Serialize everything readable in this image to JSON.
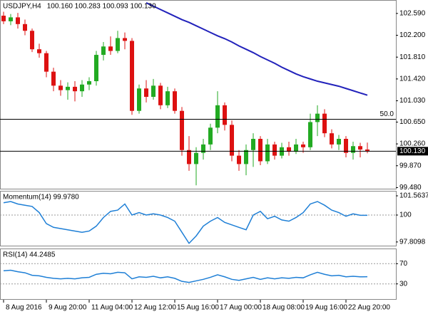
{
  "chart_data": [
    {
      "type": "candlestick",
      "title": "USDJPY,H4",
      "ohlc_label": "100.160 100.283 100.093 100.130",
      "categories": [
        "8 Aug 2016",
        null,
        null,
        null,
        null,
        null,
        "9 Aug 20:00",
        null,
        null,
        null,
        null,
        null,
        "11 Aug 04:00",
        null,
        null,
        null,
        null,
        null,
        "12 Aug 12:00",
        null,
        null,
        null,
        null,
        null,
        "15 Aug 16:00",
        null,
        null,
        null,
        null,
        null,
        "17 Aug 00:00",
        null,
        null,
        null,
        null,
        null,
        "18 Aug 08:00",
        null,
        null,
        null,
        null,
        null,
        "19 Aug 16:00",
        null,
        null,
        null,
        null,
        null,
        "22 Aug 20:00",
        null,
        null,
        null
      ],
      "open": [
        102.55,
        102.45,
        102.52,
        102.4,
        102.28,
        101.95,
        101.88,
        101.55,
        101.3,
        101.22,
        101.28,
        101.2,
        101.32,
        101.38,
        101.85,
        102.0,
        101.92,
        102.15,
        102.1,
        100.85,
        101.25,
        101.1,
        101.3,
        100.95,
        101.2,
        100.85,
        100.15,
        99.9,
        100.1,
        100.25,
        100.55,
        100.95,
        100.6,
        100.05,
        99.9,
        100.15,
        100.35,
        99.95,
        100.25,
        100.05,
        100.2,
        100.12,
        100.25,
        100.2,
        100.65,
        100.8,
        100.45,
        100.25,
        100.35,
        100.1,
        100.22,
        100.16
      ],
      "high": [
        102.62,
        102.58,
        102.6,
        102.48,
        102.32,
        102.05,
        101.92,
        101.62,
        101.4,
        101.36,
        101.38,
        101.4,
        101.45,
        101.92,
        102.08,
        102.18,
        102.28,
        102.25,
        102.15,
        101.32,
        101.4,
        101.42,
        101.35,
        101.28,
        101.25,
        100.92,
        100.4,
        100.2,
        100.35,
        100.62,
        101.2,
        101.0,
        100.68,
        100.15,
        100.25,
        100.45,
        100.4,
        100.35,
        100.3,
        100.28,
        100.3,
        100.35,
        100.3,
        100.8,
        100.95,
        100.88,
        100.52,
        100.42,
        100.4,
        100.3,
        100.28,
        100.283
      ],
      "low": [
        102.4,
        102.38,
        102.32,
        102.2,
        101.9,
        101.8,
        101.45,
        101.2,
        101.12,
        101.05,
        101.02,
        101.1,
        101.22,
        101.3,
        101.75,
        101.85,
        101.88,
        101.95,
        100.78,
        100.8,
        101.0,
        101.05,
        100.88,
        100.9,
        100.8,
        100.05,
        99.78,
        99.52,
        99.98,
        100.15,
        100.45,
        100.5,
        99.95,
        99.78,
        99.7,
        99.85,
        99.88,
        99.9,
        99.98,
        100.0,
        100.05,
        100.08,
        100.1,
        100.15,
        100.4,
        100.38,
        100.18,
        100.15,
        100.02,
        99.98,
        100.02,
        100.093
      ],
      "close": [
        102.45,
        102.52,
        102.4,
        102.28,
        101.95,
        101.88,
        101.55,
        101.3,
        101.22,
        101.28,
        101.2,
        101.32,
        101.38,
        101.85,
        102.0,
        101.92,
        102.15,
        102.1,
        100.85,
        101.25,
        101.1,
        101.3,
        100.95,
        101.2,
        100.85,
        100.15,
        99.9,
        100.1,
        100.25,
        100.55,
        100.95,
        100.6,
        100.05,
        99.9,
        100.15,
        100.35,
        99.95,
        100.25,
        100.05,
        100.2,
        100.12,
        100.25,
        100.2,
        100.65,
        100.8,
        100.45,
        100.25,
        100.35,
        100.1,
        100.22,
        100.16,
        100.13
      ],
      "up_color": "#22aa22",
      "down_color": "#dd1111",
      "overlay": {
        "color": "#2222bb",
        "values": [
          null,
          null,
          null,
          null,
          null,
          null,
          null,
          null,
          null,
          null,
          null,
          null,
          null,
          null,
          null,
          null,
          null,
          null,
          null,
          null,
          102.78,
          102.72,
          102.66,
          102.6,
          102.54,
          102.48,
          102.43,
          102.37,
          102.31,
          102.25,
          102.19,
          102.14,
          102.08,
          102.01,
          101.95,
          101.89,
          101.82,
          101.76,
          101.7,
          101.63,
          101.57,
          101.51,
          101.46,
          101.42,
          101.38,
          101.35,
          101.32,
          101.29,
          101.25,
          101.21,
          101.17,
          101.13
        ]
      },
      "fibo_level": {
        "value": 100.7,
        "label": "50.0"
      },
      "last_price": {
        "value": 100.13,
        "label": "100.130"
      },
      "ylim": [
        99.46,
        102.83
      ],
      "yticks": [
        {
          "value": 102.59,
          "label": "102.590"
        },
        {
          "value": 102.2,
          "label": "102.200"
        },
        {
          "value": 101.81,
          "label": "101.810"
        },
        {
          "value": 101.42,
          "label": "101.420"
        },
        {
          "value": 101.03,
          "label": "101.030"
        },
        {
          "value": 100.65,
          "label": "100.650"
        },
        {
          "value": 100.26,
          "label": "100.260"
        },
        {
          "value": 99.87,
          "label": "99.870"
        },
        {
          "value": 99.48,
          "label": "99.480"
        }
      ]
    },
    {
      "type": "line",
      "title": "Momentum(14) 99.9780",
      "color": "#1e7fd6",
      "values": [
        101.0,
        101.1,
        100.9,
        100.8,
        100.7,
        100.2,
        99.3,
        99.0,
        98.9,
        98.8,
        98.7,
        98.6,
        98.7,
        99.1,
        99.8,
        100.3,
        100.4,
        100.9,
        100.0,
        100.2,
        100.0,
        100.1,
        100.0,
        99.8,
        99.5,
        98.6,
        97.7,
        98.3,
        99.1,
        99.5,
        99.8,
        99.4,
        99.2,
        99.0,
        98.8,
        100.0,
        100.3,
        99.7,
        99.9,
        99.6,
        99.5,
        99.8,
        100.2,
        100.9,
        101.1,
        100.8,
        100.4,
        100.2,
        99.9,
        100.1,
        99.98,
        99.978
      ],
      "ylim": [
        97.51,
        101.97
      ],
      "yticks": [
        101.5637,
        100,
        97.8098
      ],
      "levels": [
        100
      ]
    },
    {
      "type": "line",
      "title": "RSI(14) 44.2485",
      "color": "#1e7fd6",
      "values": [
        56,
        57,
        54,
        52,
        47,
        46,
        43,
        41,
        40,
        41,
        40,
        42,
        43,
        49,
        51,
        50,
        53,
        52,
        40,
        44,
        43,
        45,
        42,
        44,
        41,
        35,
        33,
        36,
        39,
        43,
        48,
        44,
        39,
        37,
        40,
        43,
        39,
        42,
        40,
        42,
        41,
        43,
        42,
        48,
        53,
        49,
        46,
        47,
        44,
        45,
        44,
        44.2485
      ],
      "ylim": [
        0,
        100
      ],
      "yticks": [
        70,
        30
      ],
      "levels": [
        70,
        30
      ]
    }
  ]
}
